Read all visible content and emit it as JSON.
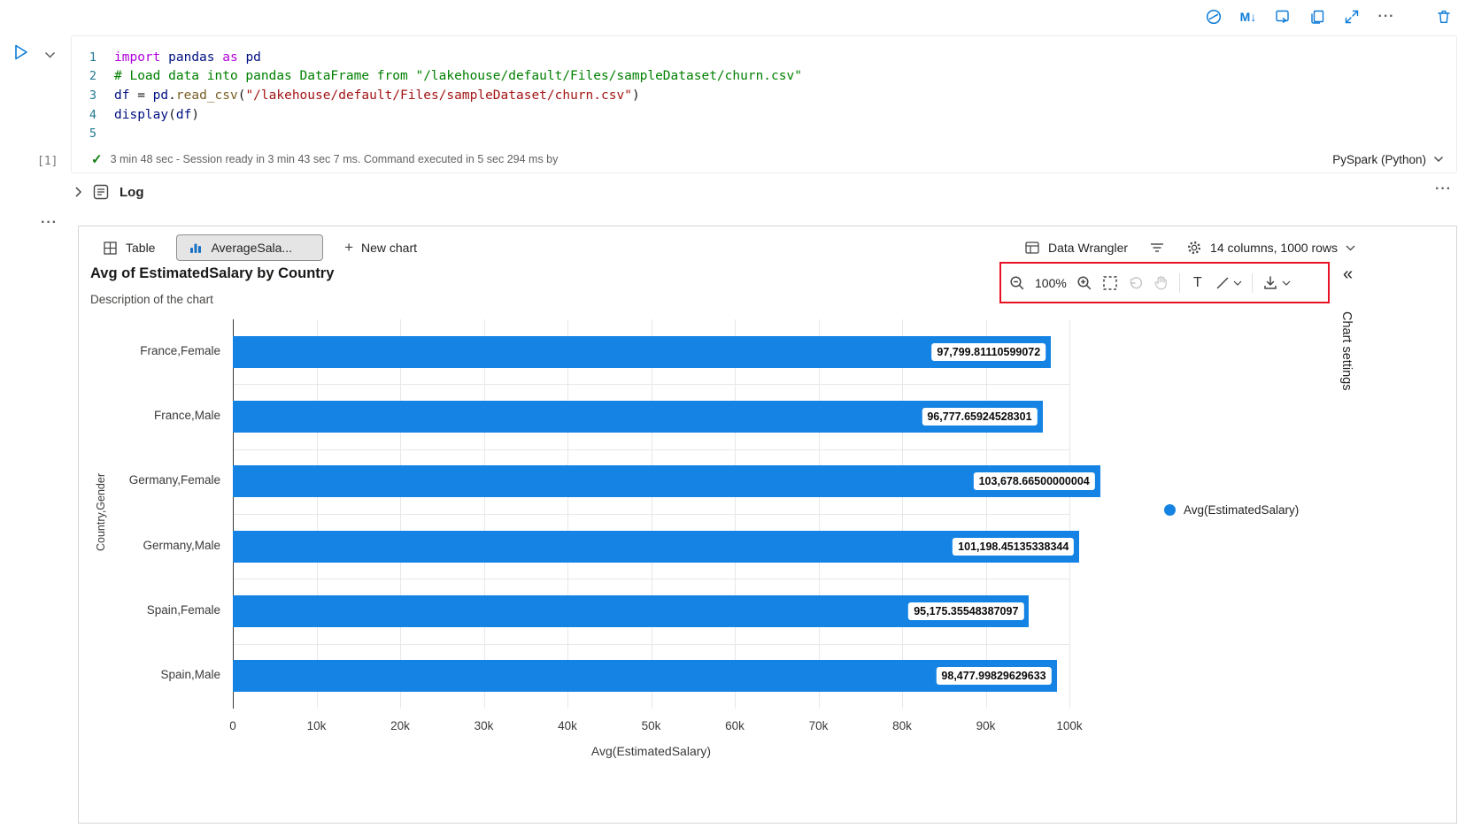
{
  "colors": {
    "icon_blue": "#0b7bd8",
    "bar_blue": "#1583e3",
    "annotation_red": "#e81123",
    "check_green": "#107c10"
  },
  "cell_toolbar": {
    "markdown_icon_label": "M↓",
    "more_label": "···"
  },
  "code_cell": {
    "lines": [
      {
        "num": "1",
        "tokens": [
          [
            "import",
            "kw"
          ],
          [
            " ",
            "pl"
          ],
          [
            "pandas",
            "id"
          ],
          [
            " ",
            "pl"
          ],
          [
            "as",
            "kw"
          ],
          [
            " ",
            "pl"
          ],
          [
            "pd",
            "id"
          ]
        ]
      },
      {
        "num": "2",
        "tokens": [
          [
            "# Load data into pandas DataFrame from \"/lakehouse/default/Files/sampleDataset/churn.csv\"",
            "cm"
          ]
        ]
      },
      {
        "num": "3",
        "tokens": [
          [
            "df",
            "id"
          ],
          [
            " ",
            "pl"
          ],
          [
            "=",
            "pl"
          ],
          [
            " ",
            "pl"
          ],
          [
            "pd",
            "id"
          ],
          [
            ".",
            "pl"
          ],
          [
            "read_csv",
            "fn"
          ],
          [
            "(",
            "pl"
          ],
          [
            "\"/lakehouse/default/Files/sampleDataset/churn.csv\"",
            "st"
          ],
          [
            ")",
            "pl"
          ]
        ]
      },
      {
        "num": "4",
        "tokens": [
          [
            "display",
            "id"
          ],
          [
            "(",
            "pl"
          ],
          [
            "df",
            "id"
          ],
          [
            ")",
            "pl"
          ]
        ]
      },
      {
        "num": "5",
        "tokens": []
      }
    ],
    "execution_count": "[1]",
    "status": "3 min 48 sec - Session ready in 3 min 43 sec 7 ms. Command executed in 5 sec 294 ms by",
    "kernel": "PySpark (Python)"
  },
  "log_section": {
    "label": "Log",
    "more": "···"
  },
  "output_panel": {
    "more": "···",
    "tabs": [
      {
        "label": "Table"
      },
      {
        "label": "AverageSala..."
      },
      {
        "label": "New chart"
      }
    ],
    "data_wrangler_label": "Data Wrangler",
    "dimensions_label": "14 columns, 1000 rows",
    "chart_toolbar": {
      "zoom_level": "100%",
      "text_tool": "T"
    },
    "chart_settings_label": "Chart settings",
    "collapse_glyph": "«"
  },
  "chart_data": {
    "type": "bar",
    "orientation": "horizontal",
    "title": "Avg of EstimatedSalary by Country",
    "subtitle": "Description of the chart",
    "categories": [
      "France,Female",
      "France,Male",
      "Germany,Female",
      "Germany,Male",
      "Spain,Female",
      "Spain,Male"
    ],
    "values": [
      97799.81110599072,
      96777.65924528301,
      103678.66500000004,
      101198.45135338344,
      95175.35548387097,
      98477.99829629633
    ],
    "value_labels": [
      "97,799.81110599072",
      "96,777.65924528301",
      "103,678.66500000004",
      "101,198.45135338344",
      "95,175.35548387097",
      "98,477.99829629633"
    ],
    "xlabel": "Avg(EstimatedSalary)",
    "ylabel": "Country,Gender",
    "x_ticks": [
      "0",
      "10k",
      "20k",
      "30k",
      "40k",
      "50k",
      "60k",
      "70k",
      "80k",
      "90k",
      "100k"
    ],
    "xlim": [
      0,
      100000
    ],
    "grid": true,
    "legend": [
      "Avg(EstimatedSalary)"
    ],
    "legend_position": "right",
    "bar_color": "#1583e3"
  }
}
